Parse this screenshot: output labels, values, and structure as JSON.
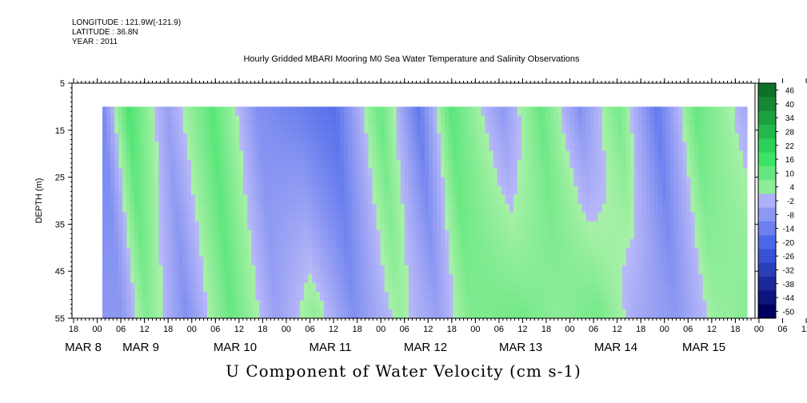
{
  "header": {
    "longitude": "LONGITUDE : 121.9W(-121.9)",
    "latitude": "LATITUDE : 36.8N",
    "year": "YEAR : 2011"
  },
  "chart_data": {
    "type": "heatmap",
    "title": "Hourly Gridded MBARI Mooring M0 Sea Water Temperature and Salinity Observations",
    "xlabel": "U Component of Water Velocity (cm s-1)",
    "ylabel": "DEPTH (m)",
    "ylim": [
      5,
      55
    ],
    "y_reversed": true,
    "y_ticks": [
      "5",
      "15",
      "25",
      "35",
      "45",
      "55"
    ],
    "data_depth_range": [
      10,
      55
    ],
    "hour_ticks": [
      "18",
      "00",
      "06",
      "12",
      "18",
      "00",
      "06",
      "12",
      "18",
      "00",
      "06",
      "12",
      "18",
      "00",
      "06",
      "12",
      "18",
      "00",
      "06",
      "12",
      "18",
      "00",
      "06",
      "12",
      "18",
      "00",
      "06",
      "12",
      "18",
      "00",
      "06",
      "12",
      "18"
    ],
    "date_labels": [
      "MAR  8",
      "MAR  9",
      "MAR 10",
      "MAR 11",
      "MAR 12",
      "MAR 13",
      "MAR 14",
      "MAR 15"
    ],
    "colorbar": {
      "levels": [
        "46",
        "40",
        "34",
        "28",
        "22",
        "16",
        "10",
        "4",
        "-2",
        "-8",
        "-14",
        "-20",
        "-26",
        "-32",
        "-38",
        "-44",
        "-50"
      ],
      "range": [
        -50,
        50
      ]
    },
    "colors": {
      "positive_light": "#a8f0a8",
      "positive_mid": "#30e060",
      "positive_dark": "#0a6020",
      "negative_light": "#b8b8f8",
      "negative_mid": "#4060e8",
      "negative_dark": "#000060",
      "axis": "#000000"
    },
    "velocity_pattern": [
      {
        "time_frac": 0.0,
        "u_surface": -12,
        "u_bottom": -8
      },
      {
        "time_frac": 0.04,
        "u_surface": 14,
        "u_bottom": 6
      },
      {
        "time_frac": 0.1,
        "u_surface": -6,
        "u_bottom": -10
      },
      {
        "time_frac": 0.17,
        "u_surface": 12,
        "u_bottom": 10
      },
      {
        "time_frac": 0.24,
        "u_surface": -10,
        "u_bottom": -6
      },
      {
        "time_frac": 0.3,
        "u_surface": -14,
        "u_bottom": 4
      },
      {
        "time_frac": 0.36,
        "u_surface": -18,
        "u_bottom": -10
      },
      {
        "time_frac": 0.43,
        "u_surface": 10,
        "u_bottom": 2
      },
      {
        "time_frac": 0.49,
        "u_surface": -16,
        "u_bottom": -6
      },
      {
        "time_frac": 0.54,
        "u_surface": 12,
        "u_bottom": 6
      },
      {
        "time_frac": 0.62,
        "u_surface": -8,
        "u_bottom": 8
      },
      {
        "time_frac": 0.68,
        "u_surface": 10,
        "u_bottom": 4
      },
      {
        "time_frac": 0.74,
        "u_surface": -10,
        "u_bottom": 8
      },
      {
        "time_frac": 0.8,
        "u_surface": 8,
        "u_bottom": -4
      },
      {
        "time_frac": 0.86,
        "u_surface": -16,
        "u_bottom": -8
      },
      {
        "time_frac": 0.92,
        "u_surface": 10,
        "u_bottom": 2
      },
      {
        "time_frac": 1.0,
        "u_surface": -4,
        "u_bottom": 6
      }
    ]
  }
}
